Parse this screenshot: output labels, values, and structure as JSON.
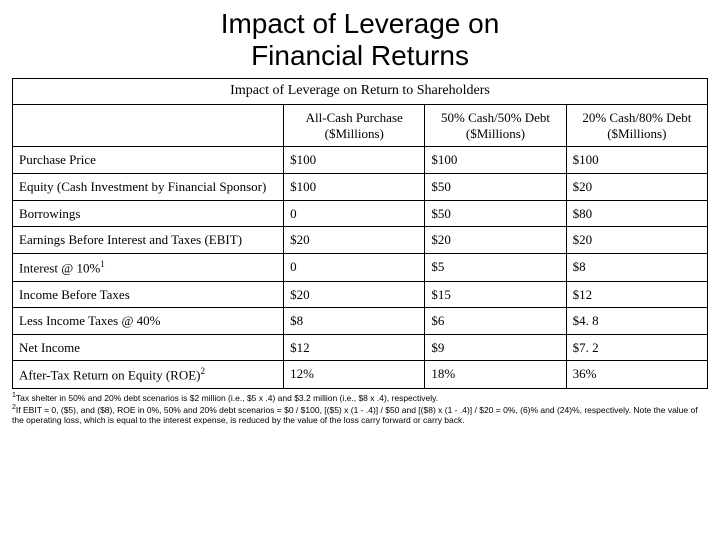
{
  "title_line1": "Impact of Leverage on",
  "title_line2": "Financial Returns",
  "table": {
    "caption": "Impact of Leverage on Return to Shareholders",
    "columns": [
      "All-Cash Purchase ($Millions)",
      "50% Cash/50% Debt ($Millions)",
      "20% Cash/80% Debt ($Millions)"
    ],
    "rows": [
      {
        "label": "Purchase Price",
        "c1": "$100",
        "c2": "$100",
        "c3": "$100"
      },
      {
        "label": "Equity (Cash Investment by Financial Sponsor)",
        "c1": "$100",
        "c2": "$50",
        "c3": "$20"
      },
      {
        "label": "Borrowings",
        "c1": "0",
        "c2": "$50",
        "c3": "$80"
      },
      {
        "label": "Earnings Before Interest and Taxes (EBIT)",
        "c1": "$20",
        "c2": "$20",
        "c3": "$20"
      },
      {
        "label": "Interest @ 10%",
        "sup": "1",
        "c1": "0",
        "c2": "$5",
        "c3": "$8"
      },
      {
        "label": "Income Before Taxes",
        "c1": "$20",
        "c2": "$15",
        "c3": "$12"
      },
      {
        "label": "Less Income Taxes @ 40%",
        "c1": "$8",
        "c2": "$6",
        "c3": "$4. 8"
      },
      {
        "label": "Net Income",
        "c1": "$12",
        "c2": "$9",
        "c3": "$7. 2"
      },
      {
        "label": "After-Tax Return on Equity (ROE)",
        "sup": "2",
        "c1": "12%",
        "c2": "18%",
        "c3": "36%"
      }
    ]
  },
  "footnotes": {
    "f1": "Tax shelter in 50% and 20% debt scenarios is $2 million (i.e., $5 x .4) and $3.2 million (i.e., $8 x .4), respectively.",
    "f2": "If EBIT = 0, ($5), and ($8), ROE in 0%, 50% and 20% debt scenarios = $0 / $100, [($5) x (1 - .4)] / $50 and [($8) x (1 - .4)] / $20 = 0%, (6)% and (24)%, respectively. Note the value of the operating loss, which is equal to the interest expense, is reduced by the value of the loss carry forward or carry back."
  },
  "colors": {
    "text": "#000000",
    "border": "#000000",
    "background": "#ffffff"
  }
}
